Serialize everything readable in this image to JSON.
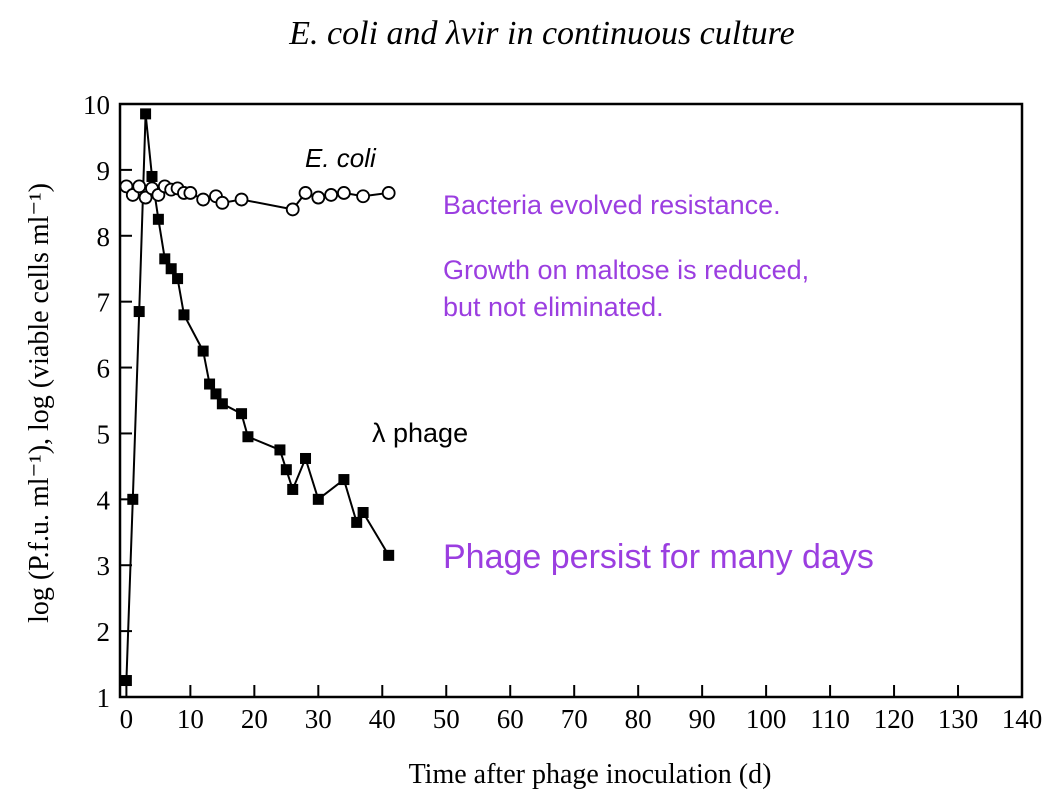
{
  "chart_data": {
    "type": "line",
    "title": "E. coli and λvir in continuous culture",
    "xlabel": "Time after phage inoculation (d)",
    "ylabel": "log (P.f.u. ml⁻¹), log (viable cells ml⁻¹)",
    "xlim": [
      -1,
      140
    ],
    "ylim": [
      1,
      10
    ],
    "xticks": [
      0,
      10,
      20,
      30,
      40,
      50,
      60,
      70,
      80,
      90,
      100,
      110,
      120,
      130,
      140
    ],
    "yticks": [
      1,
      2,
      3,
      4,
      5,
      6,
      7,
      8,
      9,
      10
    ],
    "grid": false,
    "series": [
      {
        "name": "E. coli",
        "marker": "open-circle",
        "color": "#000000",
        "points": [
          [
            0,
            8.75
          ],
          [
            1,
            8.62
          ],
          [
            2,
            8.75
          ],
          [
            3,
            8.58
          ],
          [
            4,
            8.72
          ],
          [
            5,
            8.62
          ],
          [
            6,
            8.75
          ],
          [
            7,
            8.7
          ],
          [
            8,
            8.72
          ],
          [
            9,
            8.65
          ],
          [
            10,
            8.65
          ],
          [
            12,
            8.55
          ],
          [
            14,
            8.6
          ],
          [
            15,
            8.5
          ],
          [
            18,
            8.55
          ],
          [
            26,
            8.4
          ],
          [
            28,
            8.65
          ],
          [
            30,
            8.58
          ],
          [
            32,
            8.62
          ],
          [
            34,
            8.65
          ],
          [
            37,
            8.6
          ],
          [
            41,
            8.65
          ]
        ]
      },
      {
        "name": "λ phage",
        "marker": "filled-square",
        "color": "#000000",
        "points": [
          [
            0,
            1.25
          ],
          [
            1,
            4.0
          ],
          [
            2,
            6.85
          ],
          [
            3,
            9.85
          ],
          [
            4,
            8.9
          ],
          [
            5,
            8.25
          ],
          [
            6,
            7.65
          ],
          [
            7,
            7.5
          ],
          [
            8,
            7.35
          ],
          [
            9,
            6.8
          ],
          [
            12,
            6.25
          ],
          [
            13,
            5.75
          ],
          [
            14,
            5.6
          ],
          [
            15,
            5.45
          ],
          [
            18,
            5.3
          ],
          [
            19,
            4.95
          ],
          [
            24,
            4.75
          ],
          [
            25,
            4.45
          ],
          [
            26,
            4.15
          ],
          [
            28,
            4.62
          ],
          [
            30,
            4.0
          ],
          [
            34,
            4.3
          ],
          [
            36,
            3.65
          ],
          [
            37,
            3.8
          ],
          [
            41,
            3.15
          ]
        ]
      }
    ],
    "annotations": [
      {
        "text": "Bacteria evolved resistance.",
        "color": "#9b3ee0"
      },
      {
        "text": "Growth on maltose is reduced,",
        "color": "#9b3ee0"
      },
      {
        "text": "but not eliminated.",
        "color": "#9b3ee0"
      },
      {
        "text": "Phage persist for many days",
        "color": "#9b3ee0"
      }
    ]
  }
}
